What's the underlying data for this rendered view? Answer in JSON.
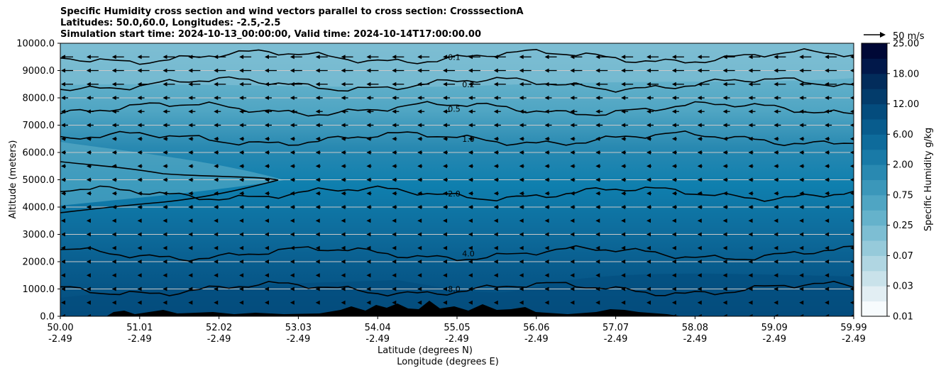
{
  "header": {
    "title_line1": "Specific Humidity cross section and wind vectors parallel to cross section: CrosssectionA",
    "title_line2": "Latitudes: 50.0,60.0, Longitudes: -2.5,-2.5",
    "title_line3": "Simulation start time: 2024-10-13_00:00:00, Valid time: 2024-10-14T17:00:00.00"
  },
  "chart_data": {
    "type": "heatmap",
    "title": "Specific Humidity cross section and wind vectors parallel to cross section: CrosssectionA",
    "xlabel_line1": "Latitude (degrees N)",
    "xlabel_line2": "Longitude (degrees E)",
    "ylabel": "Altitude (meters)",
    "ylim": [
      0,
      10000
    ],
    "xlim": [
      50.0,
      59.99
    ],
    "grid": "horizontal",
    "y_ticks": [
      "0.0",
      "1000.0",
      "2000.0",
      "3000.0",
      "4000.0",
      "5000.0",
      "6000.0",
      "7000.0",
      "8000.0",
      "9000.0",
      "10000.0"
    ],
    "x_ticks": [
      {
        "lat": "50.00",
        "lon": "-2.49"
      },
      {
        "lat": "51.01",
        "lon": "-2.49"
      },
      {
        "lat": "52.02",
        "lon": "-2.49"
      },
      {
        "lat": "53.03",
        "lon": "-2.49"
      },
      {
        "lat": "54.04",
        "lon": "-2.49"
      },
      {
        "lat": "55.05",
        "lon": "-2.49"
      },
      {
        "lat": "56.06",
        "lon": "-2.49"
      },
      {
        "lat": "57.07",
        "lon": "-2.49"
      },
      {
        "lat": "58.08",
        "lon": "-2.49"
      },
      {
        "lat": "59.09",
        "lon": "-2.49"
      },
      {
        "lat": "59.99",
        "lon": "-2.49"
      }
    ],
    "colorbar": {
      "label": "Specific Humidity g/kg",
      "tick_labels": [
        "0.01",
        "0.03",
        "0.07",
        "0.25",
        "0.75",
        "2.00",
        "6.00",
        "12.00",
        "18.00",
        "25.00"
      ]
    },
    "quiver_key": "50 m/s",
    "contour_labels": [
      "0.1",
      "0.2",
      "0.5",
      "1.0",
      "2.0",
      "4.0",
      "8.0"
    ],
    "humidity_bands": [
      {
        "level_m": 9500,
        "q": 0.1
      },
      {
        "level_m": 8500,
        "q": 0.2
      },
      {
        "level_m": 7600,
        "q": 0.5
      },
      {
        "level_m": 6500,
        "q": 1.0
      },
      {
        "level_m": 4500,
        "q": 2.0
      },
      {
        "level_m": 2300,
        "q": 4.0
      },
      {
        "level_m": 1000,
        "q": 8.0
      }
    ],
    "colors": {
      "cmap": [
        "#f7fbfd",
        "#e2eef3",
        "#c9e2ea",
        "#b0d6e2",
        "#96cada",
        "#7dbed3",
        "#65b2cb",
        "#4fa5c3",
        "#3b97ba",
        "#2989b1",
        "#197aa7",
        "#0e6b9b",
        "#085c8d",
        "#044c7d",
        "#033c6b",
        "#022c5b",
        "#01184a",
        "#000836"
      ],
      "terrain": "#000000",
      "contour": "#000000"
    }
  }
}
